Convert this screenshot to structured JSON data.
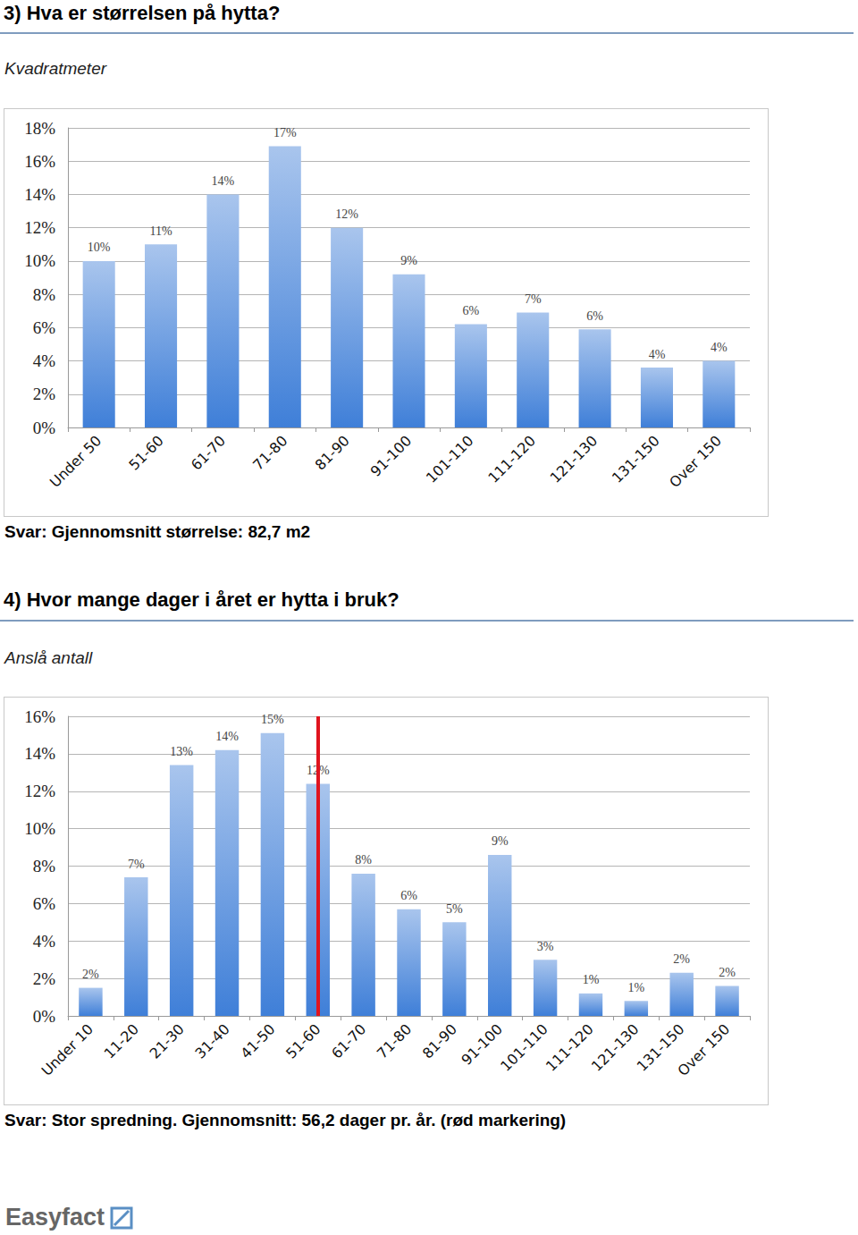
{
  "chart_data": [
    {
      "type": "bar",
      "title": "3) Hva er størrelsen på hytta?",
      "subtitle": "Kvadratmeter",
      "annotation": "Svar: Gjennomsnitt størrelse: 82,7 m2",
      "categories": [
        "Under 50",
        "51-60",
        "61-70",
        "71-80",
        "81-90",
        "91-100",
        "101-110",
        "111-120",
        "121-130",
        "131-150",
        "Over 150"
      ],
      "values": [
        10.0,
        11.0,
        14.0,
        16.9,
        12.0,
        9.2,
        6.2,
        6.9,
        5.9,
        3.6,
        4.0
      ],
      "value_labels": [
        "10%",
        "11%",
        "14%",
        "17%",
        "12%",
        "9%",
        "6%",
        "7%",
        "6%",
        "4%",
        "4%"
      ],
      "color": "#3f7fd8",
      "ylim": [
        0,
        18
      ],
      "yticks": [
        {
          "value": 0,
          "label": "0%"
        },
        {
          "value": 2,
          "label": "2%"
        },
        {
          "value": 4,
          "label": "4%"
        },
        {
          "value": 6,
          "label": "6%"
        },
        {
          "value": 8,
          "label": "8%"
        },
        {
          "value": 10,
          "label": "10%"
        },
        {
          "value": 12,
          "label": "12%"
        },
        {
          "value": 14,
          "label": "14%"
        },
        {
          "value": 16,
          "label": "16%"
        },
        {
          "value": 18,
          "label": "18%"
        }
      ],
      "grid": true,
      "data_labels": true
    },
    {
      "type": "bar",
      "title": "4) Hvor mange dager i året er hytta i bruk?",
      "subtitle": "Anslå antall",
      "annotation": "Svar: Stor spredning. Gjennomsnitt: 56,2 dager pr. år. (rød markering)",
      "categories": [
        "Under 10",
        "11-20",
        "21-30",
        "31-40",
        "41-50",
        "51-60",
        "61-70",
        "71-80",
        "81-90",
        "91-100",
        "101-110",
        "111-120",
        "121-130",
        "131-150",
        "Over 150"
      ],
      "values": [
        1.5,
        7.4,
        13.4,
        14.2,
        15.1,
        12.4,
        7.6,
        5.7,
        5.0,
        8.6,
        3.0,
        1.2,
        0.8,
        2.3,
        1.6
      ],
      "value_labels": [
        "2%",
        "7%",
        "13%",
        "14%",
        "15%",
        "12%",
        "8%",
        "6%",
        "5%",
        "9%",
        "3%",
        "1%",
        "1%",
        "2%",
        "2%"
      ],
      "color": "#3f7fd8",
      "ylim": [
        0,
        16
      ],
      "yticks": [
        {
          "value": 0,
          "label": "0%"
        },
        {
          "value": 2,
          "label": "2%"
        },
        {
          "value": 4,
          "label": "4%"
        },
        {
          "value": 6,
          "label": "6%"
        },
        {
          "value": 8,
          "label": "8%"
        },
        {
          "value": 10,
          "label": "10%"
        },
        {
          "value": 12,
          "label": "12%"
        },
        {
          "value": 14,
          "label": "14%"
        },
        {
          "value": 16,
          "label": "16%"
        }
      ],
      "grid": true,
      "data_labels": true,
      "reference_line": {
        "category": "51-60",
        "color": "#e0141e"
      }
    }
  ],
  "footer": {
    "logo": "Easyfact"
  }
}
